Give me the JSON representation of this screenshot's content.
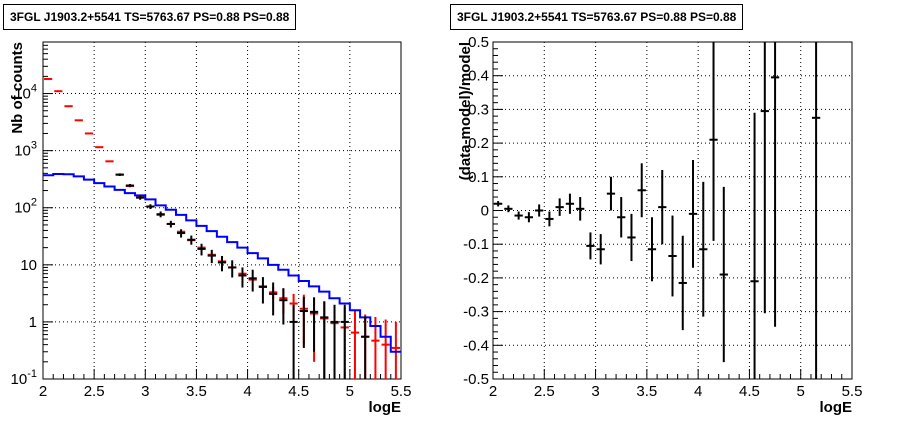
{
  "chart_data": [
    {
      "type": "scatter",
      "title": "3FGL J1903.2+5541 TS=5763.67 PS=0.88 PS=0.88",
      "xlabel": "logE",
      "ylabel": "Nb of counts",
      "xlim": [
        2,
        5.5
      ],
      "ylim": [
        0.1,
        80000
      ],
      "yscale": "log",
      "grid": true,
      "xticks": [
        "2",
        "2.5",
        "3",
        "3.5",
        "4",
        "4.5",
        "5",
        "5.5"
      ],
      "yticks": [
        {
          "value": 0.1,
          "label": "10",
          "sup": "-1"
        },
        {
          "value": 1,
          "label": "1",
          "sup": ""
        },
        {
          "value": 10,
          "label": "10",
          "sup": ""
        },
        {
          "value": 100,
          "label": "10",
          "sup": "2"
        },
        {
          "value": 1000,
          "label": "10",
          "sup": "3"
        },
        {
          "value": 10000,
          "label": "10",
          "sup": "4"
        }
      ],
      "binwidth": 0.1,
      "series": [
        {
          "color": "#ff0000",
          "style": "error-bars",
          "x": [
            2.05,
            2.15,
            2.25,
            2.35,
            2.45,
            2.55,
            2.65,
            2.75,
            2.85,
            2.95,
            3.05,
            3.15,
            3.25,
            3.35,
            3.45,
            3.55,
            3.65,
            3.75,
            3.85,
            3.95,
            4.05,
            4.15,
            4.25,
            4.35,
            4.45,
            4.55,
            4.65,
            4.75,
            4.85,
            4.95,
            5.05,
            5.15,
            5.25,
            5.35,
            5.45
          ],
          "y": [
            18000,
            11000,
            6000,
            3400,
            2000,
            1150,
            650,
            380,
            240,
            155,
            105,
            75,
            52,
            38,
            27,
            20,
            15,
            11.5,
            9,
            7,
            5.5,
            4.2,
            3.3,
            2.6,
            2.1,
            1.7,
            1.4,
            1.15,
            0.95,
            0.8,
            0.65,
            0.55,
            0.47,
            0.4,
            0.35
          ],
          "err": [
            0,
            0,
            0,
            0,
            0,
            0,
            0,
            0,
            0,
            0,
            0,
            0,
            0,
            0,
            0,
            0,
            0,
            0,
            0,
            0,
            0,
            0,
            0.8,
            1.2,
            1.0,
            1.3,
            1.2,
            1.1,
            1.0,
            1.0,
            0.9,
            0.8,
            0.75,
            0.7,
            0.65
          ]
        },
        {
          "color": "#0000ff",
          "style": "step",
          "x": [
            2.05,
            2.15,
            2.25,
            2.35,
            2.45,
            2.55,
            2.65,
            2.75,
            2.85,
            2.95,
            3.05,
            3.15,
            3.25,
            3.35,
            3.45,
            3.55,
            3.65,
            3.75,
            3.85,
            3.95,
            4.05,
            4.15,
            4.25,
            4.35,
            4.45,
            4.55,
            4.65,
            4.75,
            4.85,
            4.95,
            5.05,
            5.15,
            5.25,
            5.35,
            5.45
          ],
          "y": [
            370,
            390,
            385,
            355,
            310,
            270,
            235,
            205,
            180,
            165,
            140,
            110,
            92,
            75,
            60,
            48,
            39,
            31,
            25,
            20,
            16,
            13,
            10,
            8.2,
            6.5,
            5.2,
            4.2,
            3.4,
            2.6,
            2.1,
            1.6,
            1.2,
            0.85,
            0.55,
            0.3
          ]
        },
        {
          "color": "#000000",
          "style": "error-bars",
          "x": [
            2.75,
            2.85,
            2.95,
            3.05,
            3.15,
            3.25,
            3.35,
            3.45,
            3.55,
            3.65,
            3.75,
            3.85,
            3.95,
            4.05,
            4.15,
            4.25,
            4.35,
            4.45,
            4.55,
            4.65,
            4.75,
            4.85,
            4.95,
            5.15
          ],
          "y": [
            380,
            245,
            150,
            105,
            77,
            52,
            36,
            27.5,
            19,
            14.5,
            11,
            9,
            6.5,
            5.8,
            4.1,
            3.1,
            2.4,
            1.0,
            1.55,
            1.5,
            1.2,
            1.0,
            1.0,
            0.55
          ],
          "err": [
            20,
            16,
            12,
            10,
            9,
            7,
            6,
            5,
            4.4,
            3.8,
            3.3,
            3.0,
            2.5,
            2.4,
            2.0,
            1.8,
            1.5,
            1.0,
            1.2,
            1.2,
            1.1,
            1.0,
            1.0,
            0.7
          ]
        }
      ]
    },
    {
      "type": "scatter",
      "title": "3FGL J1903.2+5541 TS=5763.67 PS=0.88 PS=0.88",
      "xlabel": "logE",
      "ylabel": "(data-model)/model",
      "xlim": [
        2,
        5.5
      ],
      "ylim": [
        -0.5,
        0.5
      ],
      "grid": true,
      "xticks": [
        "2",
        "2.5",
        "3",
        "3.5",
        "4",
        "4.5",
        "5",
        "5.5"
      ],
      "yticks": [
        "-0.5",
        "-0.4",
        "-0.3",
        "-0.2",
        "-0.1",
        "0",
        "0.1",
        "0.2",
        "0.3",
        "0.4",
        "0.5"
      ],
      "binwidth": 0.1,
      "series": [
        {
          "color": "#000000",
          "style": "error-bars",
          "x": [
            2.05,
            2.15,
            2.25,
            2.35,
            2.45,
            2.55,
            2.65,
            2.75,
            2.85,
            2.95,
            3.05,
            3.15,
            3.25,
            3.35,
            3.45,
            3.55,
            3.65,
            3.75,
            3.85,
            3.95,
            4.05,
            4.15,
            4.25,
            4.55,
            4.65,
            4.75,
            5.15
          ],
          "y": [
            0.02,
            0.005,
            -0.015,
            -0.02,
            0.0,
            -0.025,
            0.01,
            0.02,
            0.005,
            -0.105,
            -0.115,
            0.05,
            -0.02,
            -0.08,
            0.06,
            -0.115,
            0.01,
            -0.135,
            -0.215,
            -0.01,
            -0.115,
            0.21,
            -0.19,
            -0.21,
            0.295,
            0.395,
            0.275
          ],
          "err": [
            0.008,
            0.01,
            0.012,
            0.015,
            0.018,
            0.022,
            0.026,
            0.03,
            0.035,
            0.04,
            0.045,
            0.05,
            0.06,
            0.07,
            0.08,
            0.095,
            0.11,
            0.12,
            0.14,
            0.16,
            0.2,
            0.3,
            0.26,
            0.5,
            0.6,
            0.74,
            0.9
          ]
        }
      ]
    }
  ]
}
